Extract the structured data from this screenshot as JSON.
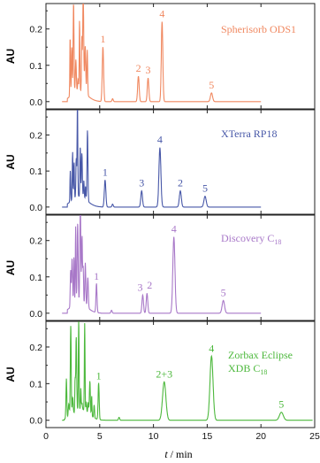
{
  "chart_data": {
    "type": "line",
    "xlabel": "t / min",
    "xlabel_parts": {
      "var": "t",
      "rest": " / min"
    },
    "xlim": [
      0,
      25
    ],
    "xticks": [
      "0",
      "5",
      "10",
      "15",
      "20",
      "25"
    ],
    "ylabel": "AU",
    "ylim": [
      -0.02,
      0.27
    ],
    "yticks": [
      "0.0",
      "0.1",
      "0.2"
    ],
    "panels": [
      {
        "title": "Spherisorb ODS1",
        "title_lines": [
          "Spherisorb ODS1"
        ],
        "color": "#f08860",
        "solvent_front": {
          "start": 2.2,
          "end": 4.0,
          "max": 0.3
        },
        "peaks": [
          {
            "label": "1",
            "t": 5.3,
            "h": 0.15,
            "w": 0.09
          },
          {
            "label": "2",
            "t": 8.6,
            "h": 0.07,
            "w": 0.1
          },
          {
            "label": "3",
            "t": 9.5,
            "h": 0.065,
            "w": 0.1
          },
          {
            "label": "4",
            "t": 10.8,
            "h": 0.22,
            "w": 0.1
          },
          {
            "label": "5",
            "t": 15.4,
            "h": 0.024,
            "w": 0.14
          }
        ]
      },
      {
        "title": "XTerra RP18",
        "title_lines": [
          "XTerra RP18"
        ],
        "color": "#4858a8",
        "solvent_front": {
          "start": 2.2,
          "end": 4.0,
          "max": 0.3
        },
        "peaks": [
          {
            "label": "1",
            "t": 5.5,
            "h": 0.075,
            "w": 0.1
          },
          {
            "label": "3",
            "t": 8.9,
            "h": 0.045,
            "w": 0.11
          },
          {
            "label": "4",
            "t": 10.6,
            "h": 0.165,
            "w": 0.13
          },
          {
            "label": "2",
            "t": 12.5,
            "h": 0.045,
            "w": 0.13
          },
          {
            "label": "5",
            "t": 14.8,
            "h": 0.03,
            "w": 0.15
          }
        ]
      },
      {
        "title": "Discovery C18",
        "title_lines": [
          "Discovery C18"
        ],
        "color": "#a878c8",
        "solvent_front": {
          "start": 2.2,
          "end": 3.9,
          "max": 0.3
        },
        "peaks": [
          {
            "label": "1",
            "t": 4.7,
            "h": 0.08,
            "w": 0.07
          },
          {
            "label": "3",
            "t": 9.0,
            "h": 0.05,
            "w": 0.1
          },
          {
            "label": "2",
            "t": 9.4,
            "h": 0.055,
            "w": 0.1
          },
          {
            "label": "4",
            "t": 11.9,
            "h": 0.21,
            "w": 0.14
          },
          {
            "label": "5",
            "t": 16.5,
            "h": 0.035,
            "w": 0.16
          }
        ]
      },
      {
        "title": "Zorbax Eclipse XDB C18",
        "title_lines": [
          "Zorbax Eclipse",
          "XDB C18"
        ],
        "color": "#4cb83c",
        "solvent_front": {
          "start": 1.9,
          "end": 4.6,
          "max": 0.3
        },
        "peaks": [
          {
            "label": "1",
            "t": 4.9,
            "h": 0.1,
            "w": 0.07
          },
          {
            "label": "2+3",
            "t": 11.0,
            "h": 0.105,
            "w": 0.22
          },
          {
            "label": "4",
            "t": 15.4,
            "h": 0.175,
            "w": 0.2
          },
          {
            "label": "5",
            "t": 21.9,
            "h": 0.022,
            "w": 0.25
          }
        ]
      }
    ]
  }
}
